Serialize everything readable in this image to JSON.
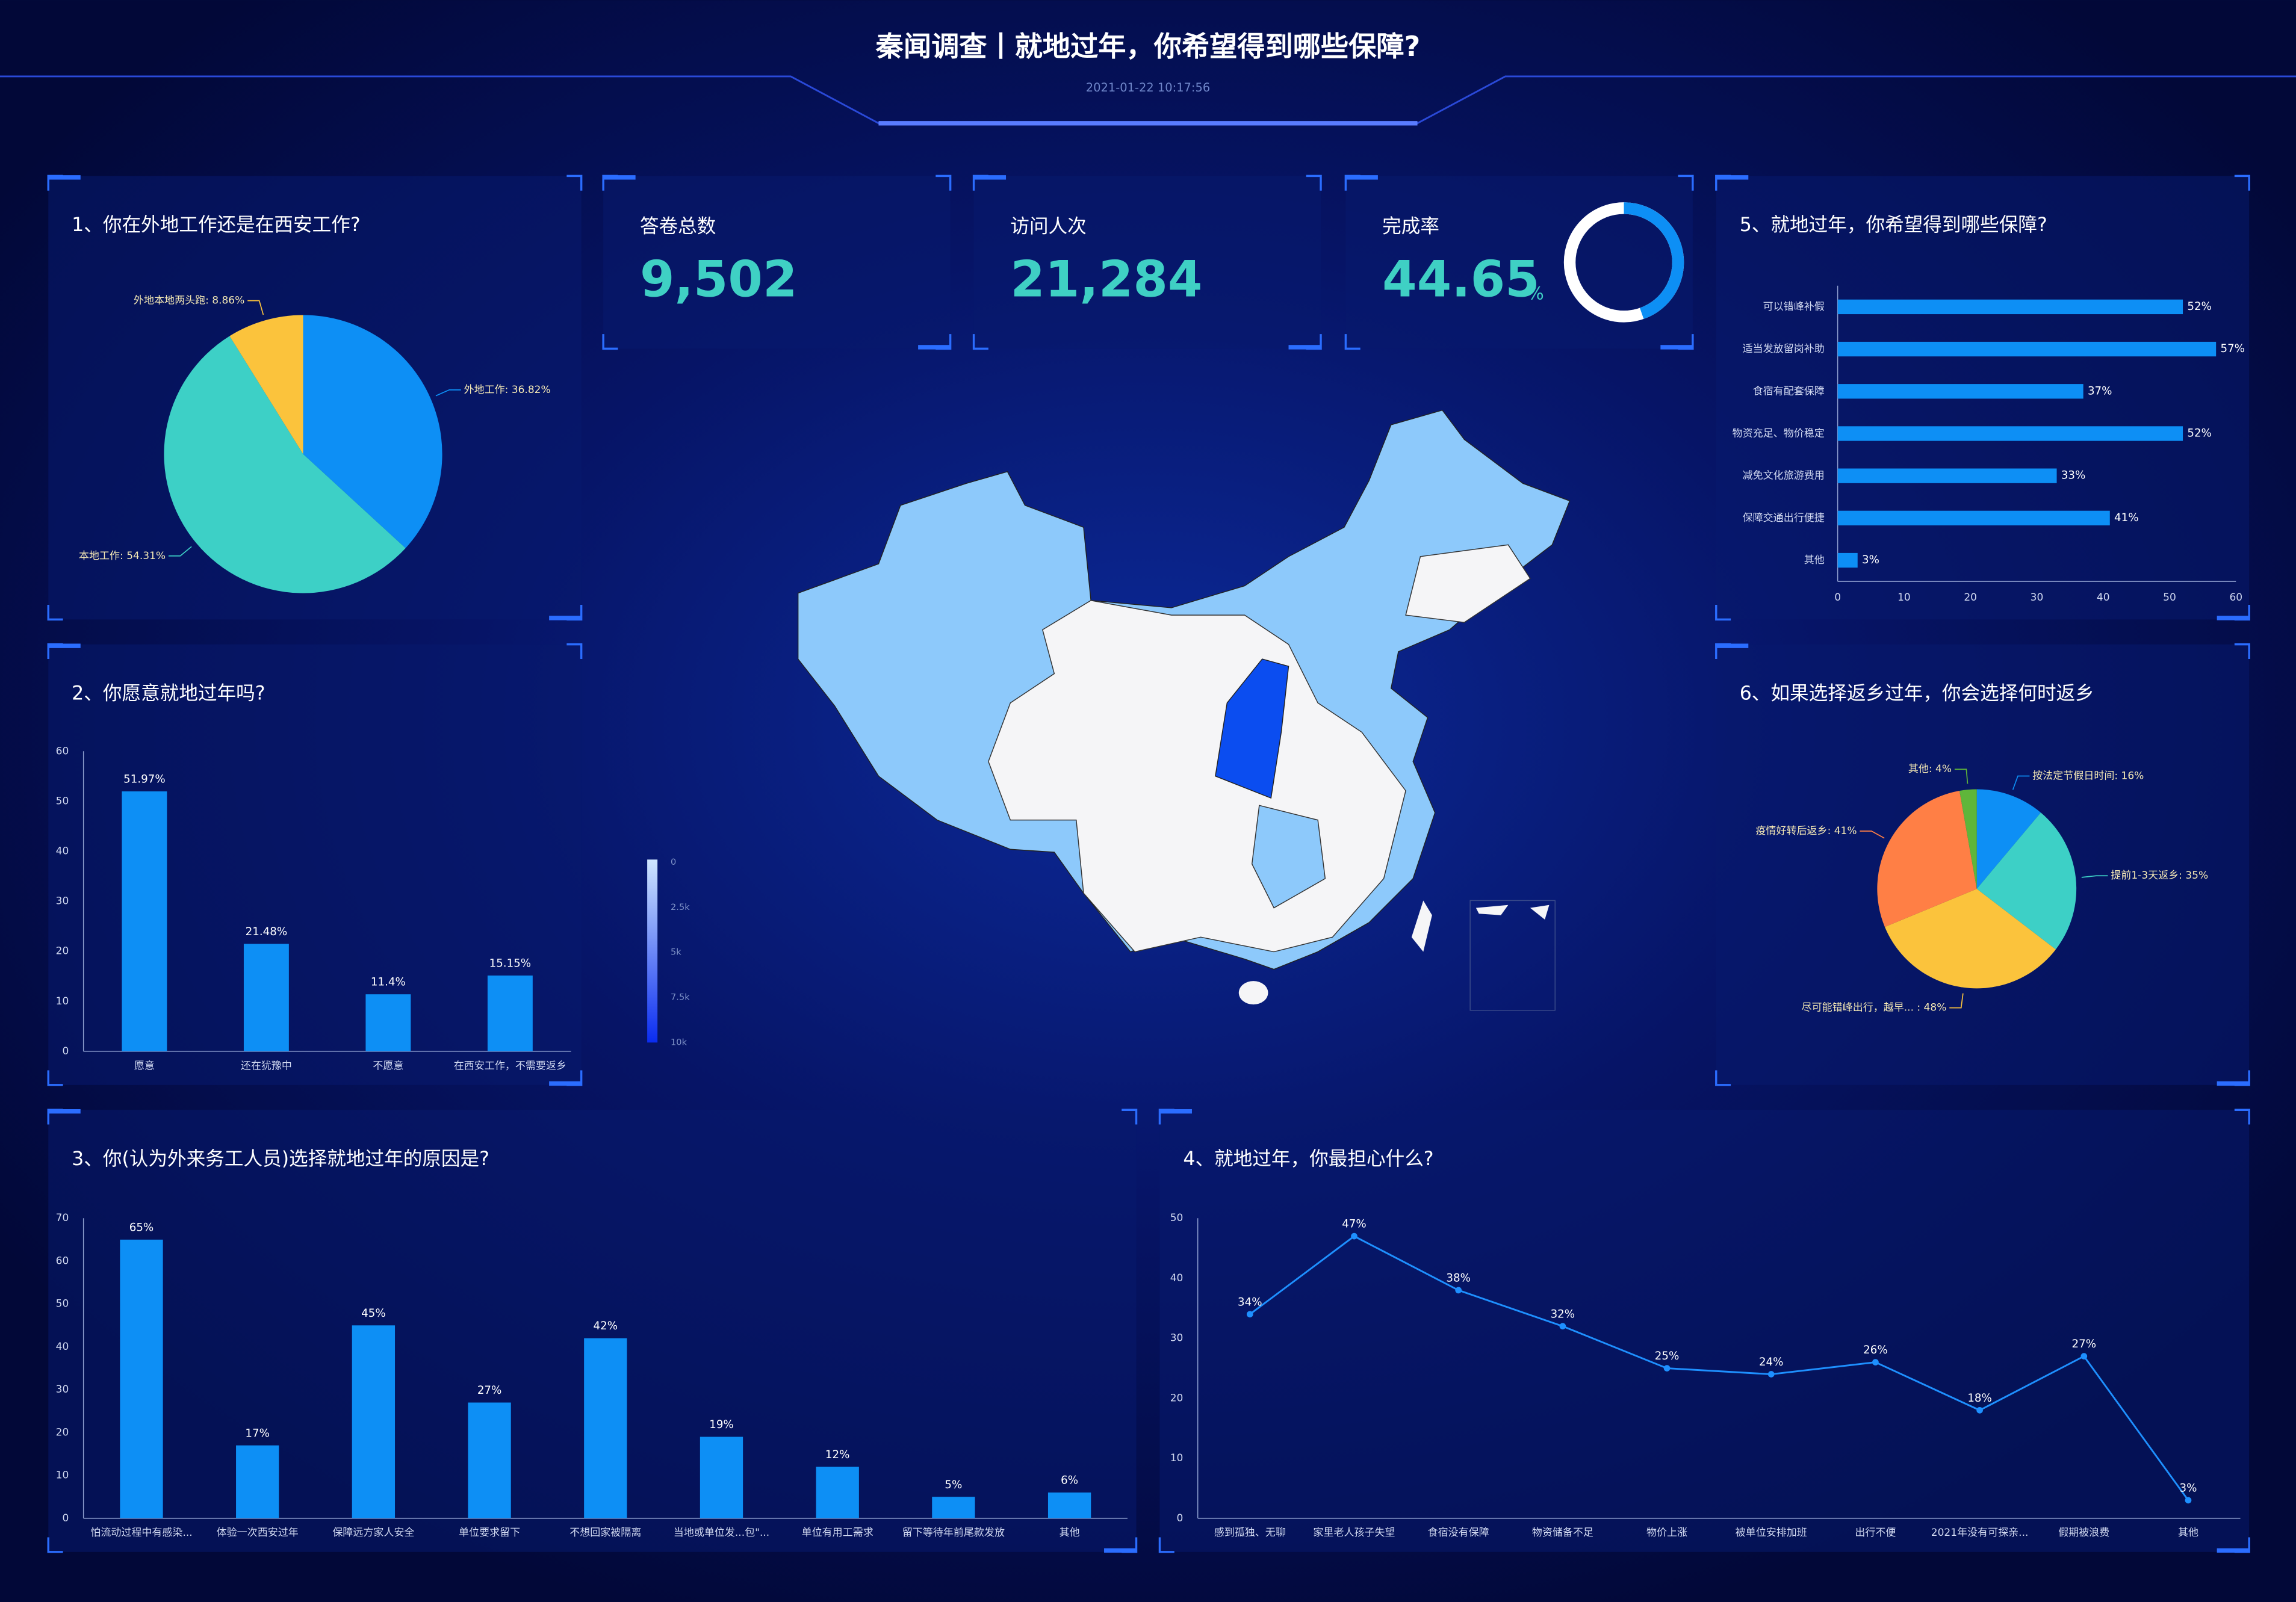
{
  "header": {
    "title": "秦闻调查丨就地过年，你希望得到哪些保障?",
    "timestamp": "2021-01-22 10:17:56"
  },
  "stats": [
    {
      "label": "答卷总数",
      "value": "9,502"
    },
    {
      "label": "访问人次",
      "value": "21,284"
    }
  ],
  "completion": {
    "label": "完成率",
    "value": 44.65,
    "unit": "%"
  },
  "map": {
    "legend_labels": [
      "0",
      "2.5k",
      "5k",
      "7.5k",
      "10k"
    ]
  },
  "chart_data": [
    {
      "type": "pie",
      "title": "1、你在外地工作还是在西安工作?",
      "values": [
        36.82,
        54.31,
        8.86
      ],
      "value_labels": [
        "外地工作: 36.82%",
        "本地工作: 54.31%",
        "外地本地两头跑: 8.86%"
      ],
      "colors": [
        "#0d8ff5",
        "#3dd0c6",
        "#fbc33c"
      ]
    },
    {
      "type": "bar",
      "title": "2、你愿意就地过年吗?",
      "categories": [
        "愿意",
        "还在犹豫中",
        "不愿意",
        "在西安工作，不需要返乡"
      ],
      "values": [
        51.97,
        21.48,
        11.4,
        15.15
      ],
      "value_labels": [
        "51.97%",
        "21.48%",
        "11.4%",
        "15.15%"
      ],
      "color": "#0d8ff5",
      "ylim": [
        0,
        60
      ],
      "yticks": [
        0,
        10,
        20,
        30,
        40,
        50,
        60
      ]
    },
    {
      "type": "bar",
      "title": "3、你(认为外来务工人员)选择就地过年的原因是?",
      "categories": [
        "怕流动过程中有感染...",
        "体验一次西安过年",
        "保障远方家人安全",
        "单位要求留下",
        "不想回家被隔离",
        "当地或单位发...包\"...",
        "单位有用工需求",
        "留下等待年前尾款发放",
        "其他"
      ],
      "values": [
        65,
        17,
        45,
        27,
        42,
        19,
        12,
        5,
        6
      ],
      "value_labels": [
        "65%",
        "17%",
        "45%",
        "27%",
        "42%",
        "19%",
        "12%",
        "5%",
        "6%"
      ],
      "color": "#0d8ff5",
      "ylim": [
        0,
        70
      ],
      "yticks": [
        0,
        10,
        20,
        30,
        40,
        50,
        60,
        70
      ]
    },
    {
      "type": "line",
      "title": "4、就地过年，你最担心什么?",
      "categories": [
        "感到孤独、无聊",
        "家里老人孩子失望",
        "食宿没有保障",
        "物资储备不足",
        "物价上涨",
        "被单位安排加班",
        "出行不便",
        "2021年没有可探亲...",
        "假期被浪费",
        "其他"
      ],
      "values": [
        34,
        47,
        38,
        32,
        25,
        24,
        26,
        18,
        27,
        3
      ],
      "value_labels": [
        "34%",
        "47%",
        "38%",
        "32%",
        "25%",
        "24%",
        "26%",
        "18%",
        "27%",
        "3%"
      ],
      "color": "#1e90ff",
      "ylim": [
        0,
        50
      ],
      "yticks": [
        0,
        10,
        20,
        30,
        40,
        50
      ]
    },
    {
      "type": "hbar",
      "title": "5、就地过年，你希望得到哪些保障?",
      "categories": [
        "可以错峰补假",
        "适当发放留岗补助",
        "食宿有配套保障",
        "物资充足、物价稳定",
        "减免文化旅游费用",
        "保障交通出行便捷",
        "其他"
      ],
      "values": [
        52,
        57,
        37,
        52,
        33,
        41,
        3
      ],
      "value_labels": [
        "52%",
        "57%",
        "37%",
        "52%",
        "33%",
        "41%",
        "3%"
      ],
      "color": "#0d8ff5",
      "xlim": [
        0,
        60
      ],
      "xticks": [
        0,
        10,
        20,
        30,
        40,
        50,
        60
      ]
    },
    {
      "type": "pie",
      "title": "6、如果选择返乡过年，你会选择何时返乡",
      "values": [
        16,
        35,
        48,
        41,
        4
      ],
      "value_labels": [
        "按法定节假日时间: 16%",
        "提前1-3天返乡: 35%",
        "尽可能错峰出行，越早... : 48%",
        "疫情好转后返乡: 41%",
        "其他: 4%"
      ],
      "colors": [
        "#0d8ff5",
        "#3dd0c6",
        "#fbc33c",
        "#ff7f45",
        "#5fb63a"
      ]
    }
  ]
}
